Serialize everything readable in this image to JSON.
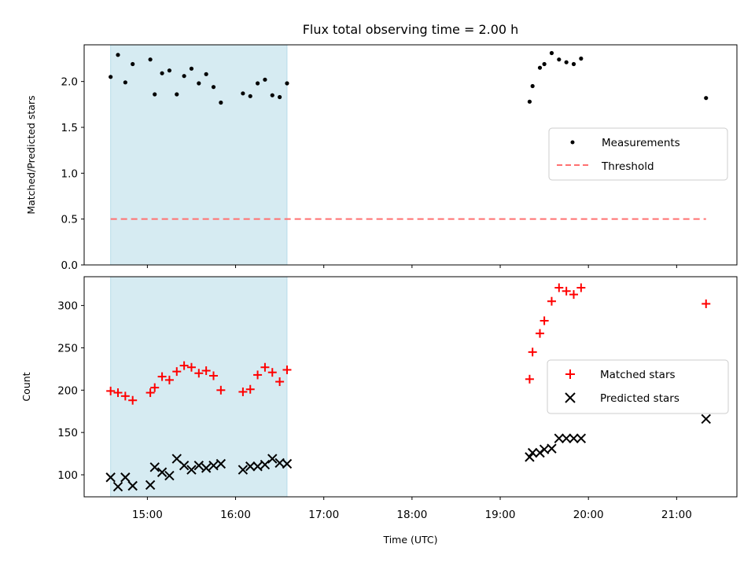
{
  "chart_data": [
    {
      "type": "scatter",
      "title": "Flux total observing time = 2.00 h",
      "ylabel": "Matched/Predicted stars",
      "xlim": [
        "14:17",
        "21:41"
      ],
      "ylim": [
        0,
        2.4
      ],
      "yticks": [
        "0.0",
        "0.5",
        "1.0",
        "1.5",
        "2.0"
      ],
      "shaded_region": {
        "x": [
          "14:35",
          "16:35"
        ],
        "color": "#add8e6"
      },
      "legend_position": "center-right",
      "series": [
        {
          "name": "Measurements",
          "marker": "dot",
          "color": "#000000",
          "x": [
            "14:35",
            "14:40",
            "14:45",
            "14:50",
            "15:02",
            "15:05",
            "15:10",
            "15:15",
            "15:20",
            "15:25",
            "15:30",
            "15:35",
            "15:40",
            "15:45",
            "15:50",
            "16:05",
            "16:10",
            "16:15",
            "16:20",
            "16:25",
            "16:30",
            "16:35",
            "19:20",
            "19:22",
            "19:27",
            "19:30",
            "19:35",
            "19:40",
            "19:45",
            "19:50",
            "19:55",
            "21:20"
          ],
          "y": [
            2.05,
            2.29,
            1.99,
            2.19,
            2.24,
            1.86,
            2.09,
            2.12,
            1.86,
            2.06,
            2.14,
            1.98,
            2.08,
            1.94,
            1.77,
            1.87,
            1.84,
            1.98,
            2.02,
            1.85,
            1.83,
            1.98,
            1.78,
            1.95,
            2.15,
            2.19,
            2.31,
            2.24,
            2.21,
            2.19,
            2.25,
            1.82
          ]
        },
        {
          "name": "Threshold",
          "style": "dashed",
          "color": "#ff7070",
          "x": [
            "14:35",
            "21:20"
          ],
          "y": [
            0.5,
            0.5
          ]
        }
      ]
    },
    {
      "type": "scatter",
      "xlabel": "Time (UTC)",
      "ylabel": "Count",
      "xlim": [
        "14:17",
        "21:41"
      ],
      "ylim": [
        74,
        334
      ],
      "yticks": [
        "100",
        "150",
        "200",
        "250",
        "300"
      ],
      "xticks": [
        "15:00",
        "16:00",
        "17:00",
        "18:00",
        "19:00",
        "20:00",
        "21:00"
      ],
      "shaded_region": {
        "x": [
          "14:35",
          "16:35"
        ],
        "color": "#add8e6"
      },
      "legend_position": "center-right",
      "series": [
        {
          "name": "Matched stars",
          "marker": "plus",
          "color": "#ff0000",
          "x": [
            "14:35",
            "14:40",
            "14:45",
            "14:50",
            "15:02",
            "15:05",
            "15:10",
            "15:15",
            "15:20",
            "15:25",
            "15:30",
            "15:35",
            "15:40",
            "15:45",
            "15:50",
            "16:05",
            "16:10",
            "16:15",
            "16:20",
            "16:25",
            "16:30",
            "16:35",
            "19:20",
            "19:22",
            "19:27",
            "19:30",
            "19:35",
            "19:40",
            "19:45",
            "19:50",
            "19:55",
            "21:20"
          ],
          "y": [
            199,
            197,
            193,
            188,
            197,
            203,
            216,
            212,
            222,
            229,
            227,
            220,
            223,
            217,
            200,
            198,
            201,
            218,
            227,
            221,
            210,
            224,
            213,
            245,
            267,
            282,
            305,
            321,
            317,
            313,
            321,
            302
          ]
        },
        {
          "name": "Predicted stars",
          "marker": "x",
          "color": "#000000",
          "x": [
            "14:35",
            "14:40",
            "14:45",
            "14:50",
            "15:02",
            "15:05",
            "15:10",
            "15:15",
            "15:20",
            "15:25",
            "15:30",
            "15:35",
            "15:40",
            "15:45",
            "15:50",
            "16:05",
            "16:10",
            "16:15",
            "16:20",
            "16:25",
            "16:30",
            "16:35",
            "19:20",
            "19:22",
            "19:27",
            "19:30",
            "19:35",
            "19:40",
            "19:45",
            "19:50",
            "19:55",
            "21:20"
          ],
          "y": [
            97,
            86,
            97,
            87,
            88,
            109,
            103,
            99,
            119,
            111,
            106,
            111,
            108,
            111,
            113,
            106,
            110,
            110,
            112,
            119,
            114,
            113,
            121,
            126,
            126,
            130,
            131,
            143,
            143,
            143,
            143,
            166
          ]
        }
      ]
    }
  ]
}
